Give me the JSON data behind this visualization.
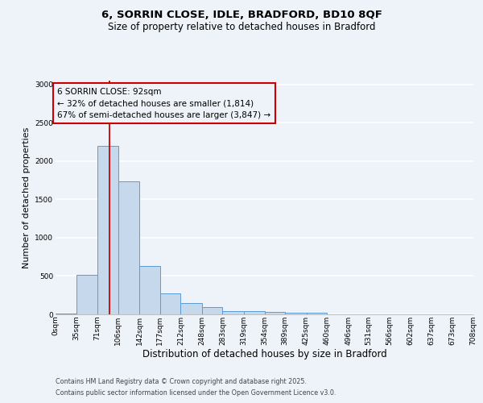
{
  "title1": "6, SORRIN CLOSE, IDLE, BRADFORD, BD10 8QF",
  "title2": "Size of property relative to detached houses in Bradford",
  "xlabel": "Distribution of detached houses by size in Bradford",
  "ylabel": "Number of detached properties",
  "footnote1": "Contains HM Land Registry data © Crown copyright and database right 2025.",
  "footnote2": "Contains public sector information licensed under the Open Government Licence v3.0.",
  "annotation_line1": "6 SORRIN CLOSE: 92sqm",
  "annotation_line2": "← 32% of detached houses are smaller (1,814)",
  "annotation_line3": "67% of semi-detached houses are larger (3,847) →",
  "red_line_x": 92,
  "bar_edges": [
    0,
    35,
    71,
    106,
    142,
    177,
    212,
    248,
    283,
    319,
    354,
    389,
    425,
    460,
    496,
    531,
    566,
    602,
    637,
    673,
    708
  ],
  "bar_heights": [
    15,
    520,
    2200,
    1740,
    630,
    275,
    150,
    95,
    45,
    40,
    30,
    25,
    20,
    5,
    5,
    0,
    0,
    0,
    0,
    0
  ],
  "bar_color": "#c5d8ec",
  "bar_edge_color": "#5b9bd5",
  "red_line_color": "#cc0000",
  "background_color": "#eef2f9",
  "grid_color": "#ffffff",
  "ylim": [
    0,
    3050
  ],
  "yticks": [
    0,
    500,
    1000,
    1500,
    2000,
    2500,
    3000
  ],
  "annotation_box_color": "#cc0000",
  "title1_fontsize": 9.5,
  "title2_fontsize": 8.5,
  "tick_label_fontsize": 6.5,
  "ylabel_fontsize": 8,
  "xlabel_fontsize": 8.5,
  "annotation_fontsize": 7.5,
  "footnote_fontsize": 5.8
}
